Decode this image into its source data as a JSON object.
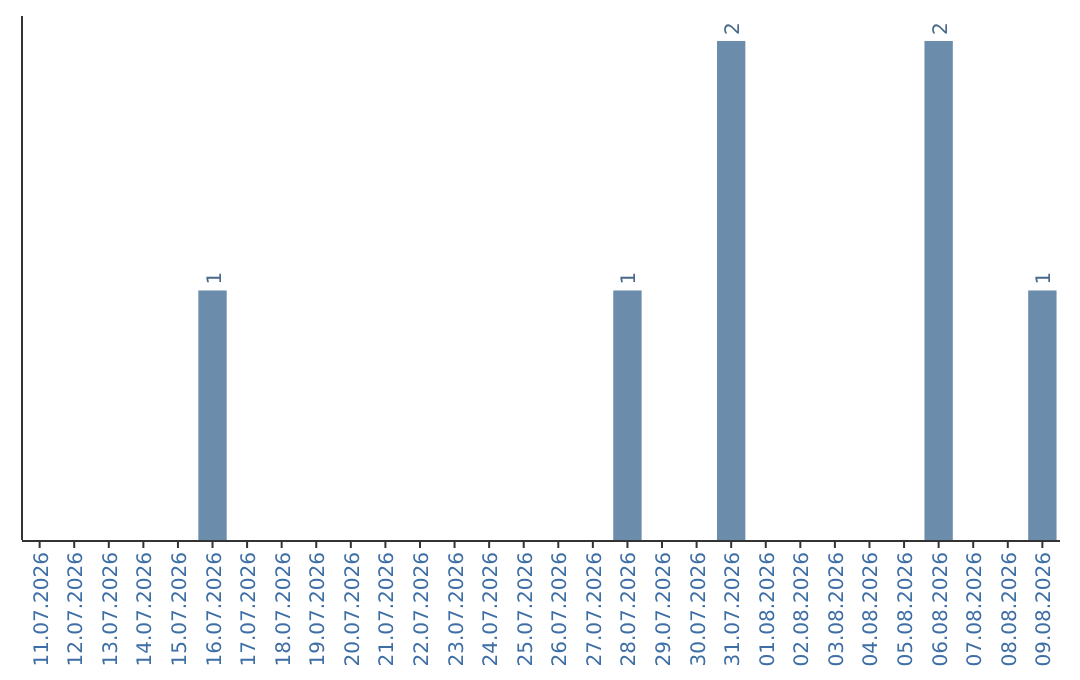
{
  "chart_data": {
    "type": "bar",
    "categories": [
      "11.07.2026",
      "12.07.2026",
      "13.07.2026",
      "14.07.2026",
      "15.07.2026",
      "16.07.2026",
      "17.07.2026",
      "18.07.2026",
      "19.07.2026",
      "20.07.2026",
      "21.07.2026",
      "22.07.2026",
      "23.07.2026",
      "24.07.2026",
      "25.07.2026",
      "26.07.2026",
      "27.07.2026",
      "28.07.2026",
      "29.07.2026",
      "30.07.2026",
      "31.07.2026",
      "01.08.2026",
      "02.08.2026",
      "03.08.2026",
      "04.08.2026",
      "05.08.2026",
      "06.08.2026",
      "07.08.2026",
      "08.08.2026",
      "09.08.2026"
    ],
    "values": [
      0,
      0,
      0,
      0,
      0,
      1,
      0,
      0,
      0,
      0,
      0,
      0,
      0,
      0,
      0,
      0,
      0,
      1,
      0,
      0,
      2,
      0,
      0,
      0,
      0,
      0,
      2,
      0,
      0,
      1
    ],
    "value_labels": [
      null,
      null,
      null,
      null,
      null,
      "1",
      null,
      null,
      null,
      null,
      null,
      null,
      null,
      null,
      null,
      null,
      null,
      "1",
      null,
      null,
      "2",
      null,
      null,
      null,
      null,
      null,
      "2",
      null,
      null,
      "1"
    ],
    "color": "#6b8cab"
  }
}
